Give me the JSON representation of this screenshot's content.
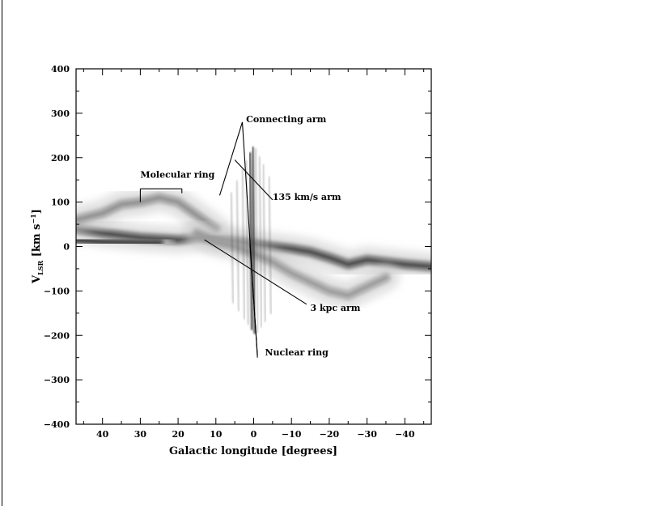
{
  "chart_data": {
    "type": "heatmap",
    "title": "",
    "xlabel": "Galactic longitude [degrees]",
    "ylabel_main": "V",
    "ylabel_sub": "LSR",
    "ylabel_unit_open": " [km s",
    "ylabel_unit_sup": "−1",
    "ylabel_unit_close": "]",
    "xlim": [
      47,
      -47
    ],
    "ylim": [
      -400,
      400
    ],
    "x_ticks": [
      40,
      30,
      20,
      10,
      0,
      -10,
      -20,
      -30,
      -40
    ],
    "x_tick_labels": [
      "40",
      "30",
      "20",
      "10",
      "0",
      "−10",
      "−20",
      "−30",
      "−40"
    ],
    "y_ticks": [
      400,
      300,
      200,
      100,
      0,
      -100,
      -200,
      -300,
      -400
    ],
    "y_tick_labels": [
      "400",
      "300",
      "200",
      "100",
      "0",
      "−100",
      "−200",
      "−300",
      "−400"
    ],
    "colormap": "greyscale",
    "emission_ridges": [
      {
        "points": [
          [
            47,
            40
          ],
          [
            40,
            30
          ],
          [
            30,
            20
          ],
          [
            20,
            15
          ],
          [
            15,
            20
          ],
          [
            10,
            18
          ],
          [
            5,
            12
          ],
          [
            0,
            5
          ],
          [
            -5,
            0
          ],
          [
            -10,
            -5
          ],
          [
            -15,
            -12
          ],
          [
            -20,
            -25
          ],
          [
            -25,
            -40
          ],
          [
            -30,
            -30
          ],
          [
            -35,
            -35
          ],
          [
            -40,
            -40
          ],
          [
            -47,
            -45
          ]
        ],
        "intensity": 0.9
      },
      {
        "points": [
          [
            47,
            60
          ],
          [
            40,
            75
          ],
          [
            35,
            95
          ],
          [
            30,
            100
          ],
          [
            25,
            110
          ],
          [
            20,
            100
          ],
          [
            15,
            70
          ],
          [
            10,
            40
          ]
        ],
        "intensity": 0.55
      },
      {
        "points": [
          [
            15,
            30
          ],
          [
            10,
            10
          ],
          [
            5,
            0
          ],
          [
            0,
            -15
          ],
          [
            -5,
            -35
          ],
          [
            -10,
            -60
          ],
          [
            -15,
            -80
          ],
          [
            -20,
            -100
          ],
          [
            -25,
            -110
          ],
          [
            -30,
            -90
          ],
          [
            -35,
            -70
          ]
        ],
        "intensity": 0.5
      },
      {
        "points": [
          [
            47,
            15
          ],
          [
            40,
            10
          ],
          [
            30,
            8
          ],
          [
            25,
            8
          ]
        ],
        "intensity": 0.95
      }
    ],
    "annotations": [
      {
        "label": "Molecular ring",
        "label_x": 30,
        "label_y": 155
      },
      {
        "label": "Connecting arm",
        "label_x": 2,
        "label_y": 280
      },
      {
        "label": "135 km/s arm",
        "label_x": -5,
        "label_y": 105
      },
      {
        "label": "3 kpc arm",
        "label_x": -15,
        "label_y": -145
      },
      {
        "label": "Nuclear ring",
        "label_x": -3,
        "label_y": -245
      }
    ],
    "leader_lines": [
      {
        "from": [
          30,
          100
        ],
        "to": [
          30,
          130
        ]
      },
      {
        "from": [
          30,
          130
        ],
        "to": [
          19,
          130
        ]
      },
      {
        "from": [
          19,
          130
        ],
        "to": [
          19,
          120
        ]
      },
      {
        "from": [
          3,
          280
        ],
        "to": [
          9,
          115
        ]
      },
      {
        "from": [
          3,
          280
        ],
        "to": [
          -1,
          -250
        ]
      },
      {
        "from": [
          5,
          195
        ],
        "to": [
          -5,
          105
        ]
      },
      {
        "from": [
          13,
          15
        ],
        "to": [
          -14,
          -130
        ]
      },
      {
        "from": [
          1,
          5
        ],
        "to": [
          -1,
          -245
        ]
      }
    ]
  }
}
